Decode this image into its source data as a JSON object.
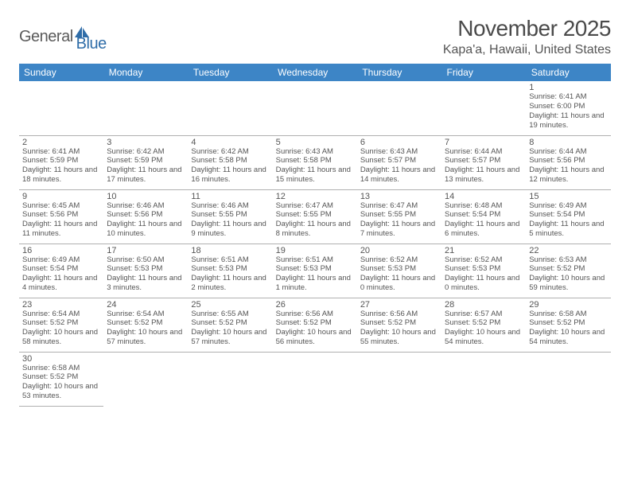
{
  "brand": {
    "part1": "General",
    "part2": "Blue"
  },
  "title": "November 2025",
  "location": "Kapa'a, Hawaii, United States",
  "colors": {
    "header_bg": "#3d85c6",
    "header_text": "#ffffff",
    "cell_border_top": "#3d85c6",
    "cell_border_bottom": "#b0b0b0",
    "text": "#555555",
    "title_text": "#4a4a4a",
    "logo_gray": "#5a5a5a",
    "logo_blue": "#2f6da8"
  },
  "layout": {
    "columns": 7,
    "rows": 6,
    "leading_blanks": 6,
    "days_in_month": 30
  },
  "daynames": [
    "Sunday",
    "Monday",
    "Tuesday",
    "Wednesday",
    "Thursday",
    "Friday",
    "Saturday"
  ],
  "days": [
    {
      "n": 1,
      "sunrise": "6:41 AM",
      "sunset": "6:00 PM",
      "daylight": "11 hours and 19 minutes."
    },
    {
      "n": 2,
      "sunrise": "6:41 AM",
      "sunset": "5:59 PM",
      "daylight": "11 hours and 18 minutes."
    },
    {
      "n": 3,
      "sunrise": "6:42 AM",
      "sunset": "5:59 PM",
      "daylight": "11 hours and 17 minutes."
    },
    {
      "n": 4,
      "sunrise": "6:42 AM",
      "sunset": "5:58 PM",
      "daylight": "11 hours and 16 minutes."
    },
    {
      "n": 5,
      "sunrise": "6:43 AM",
      "sunset": "5:58 PM",
      "daylight": "11 hours and 15 minutes."
    },
    {
      "n": 6,
      "sunrise": "6:43 AM",
      "sunset": "5:57 PM",
      "daylight": "11 hours and 14 minutes."
    },
    {
      "n": 7,
      "sunrise": "6:44 AM",
      "sunset": "5:57 PM",
      "daylight": "11 hours and 13 minutes."
    },
    {
      "n": 8,
      "sunrise": "6:44 AM",
      "sunset": "5:56 PM",
      "daylight": "11 hours and 12 minutes."
    },
    {
      "n": 9,
      "sunrise": "6:45 AM",
      "sunset": "5:56 PM",
      "daylight": "11 hours and 11 minutes."
    },
    {
      "n": 10,
      "sunrise": "6:46 AM",
      "sunset": "5:56 PM",
      "daylight": "11 hours and 10 minutes."
    },
    {
      "n": 11,
      "sunrise": "6:46 AM",
      "sunset": "5:55 PM",
      "daylight": "11 hours and 9 minutes."
    },
    {
      "n": 12,
      "sunrise": "6:47 AM",
      "sunset": "5:55 PM",
      "daylight": "11 hours and 8 minutes."
    },
    {
      "n": 13,
      "sunrise": "6:47 AM",
      "sunset": "5:55 PM",
      "daylight": "11 hours and 7 minutes."
    },
    {
      "n": 14,
      "sunrise": "6:48 AM",
      "sunset": "5:54 PM",
      "daylight": "11 hours and 6 minutes."
    },
    {
      "n": 15,
      "sunrise": "6:49 AM",
      "sunset": "5:54 PM",
      "daylight": "11 hours and 5 minutes."
    },
    {
      "n": 16,
      "sunrise": "6:49 AM",
      "sunset": "5:54 PM",
      "daylight": "11 hours and 4 minutes."
    },
    {
      "n": 17,
      "sunrise": "6:50 AM",
      "sunset": "5:53 PM",
      "daylight": "11 hours and 3 minutes."
    },
    {
      "n": 18,
      "sunrise": "6:51 AM",
      "sunset": "5:53 PM",
      "daylight": "11 hours and 2 minutes."
    },
    {
      "n": 19,
      "sunrise": "6:51 AM",
      "sunset": "5:53 PM",
      "daylight": "11 hours and 1 minute."
    },
    {
      "n": 20,
      "sunrise": "6:52 AM",
      "sunset": "5:53 PM",
      "daylight": "11 hours and 0 minutes."
    },
    {
      "n": 21,
      "sunrise": "6:52 AM",
      "sunset": "5:53 PM",
      "daylight": "11 hours and 0 minutes."
    },
    {
      "n": 22,
      "sunrise": "6:53 AM",
      "sunset": "5:52 PM",
      "daylight": "10 hours and 59 minutes."
    },
    {
      "n": 23,
      "sunrise": "6:54 AM",
      "sunset": "5:52 PM",
      "daylight": "10 hours and 58 minutes."
    },
    {
      "n": 24,
      "sunrise": "6:54 AM",
      "sunset": "5:52 PM",
      "daylight": "10 hours and 57 minutes."
    },
    {
      "n": 25,
      "sunrise": "6:55 AM",
      "sunset": "5:52 PM",
      "daylight": "10 hours and 57 minutes."
    },
    {
      "n": 26,
      "sunrise": "6:56 AM",
      "sunset": "5:52 PM",
      "daylight": "10 hours and 56 minutes."
    },
    {
      "n": 27,
      "sunrise": "6:56 AM",
      "sunset": "5:52 PM",
      "daylight": "10 hours and 55 minutes."
    },
    {
      "n": 28,
      "sunrise": "6:57 AM",
      "sunset": "5:52 PM",
      "daylight": "10 hours and 54 minutes."
    },
    {
      "n": 29,
      "sunrise": "6:58 AM",
      "sunset": "5:52 PM",
      "daylight": "10 hours and 54 minutes."
    },
    {
      "n": 30,
      "sunrise": "6:58 AM",
      "sunset": "5:52 PM",
      "daylight": "10 hours and 53 minutes."
    }
  ],
  "labels": {
    "sunrise": "Sunrise: ",
    "sunset": "Sunset: ",
    "daylight": "Daylight: "
  }
}
